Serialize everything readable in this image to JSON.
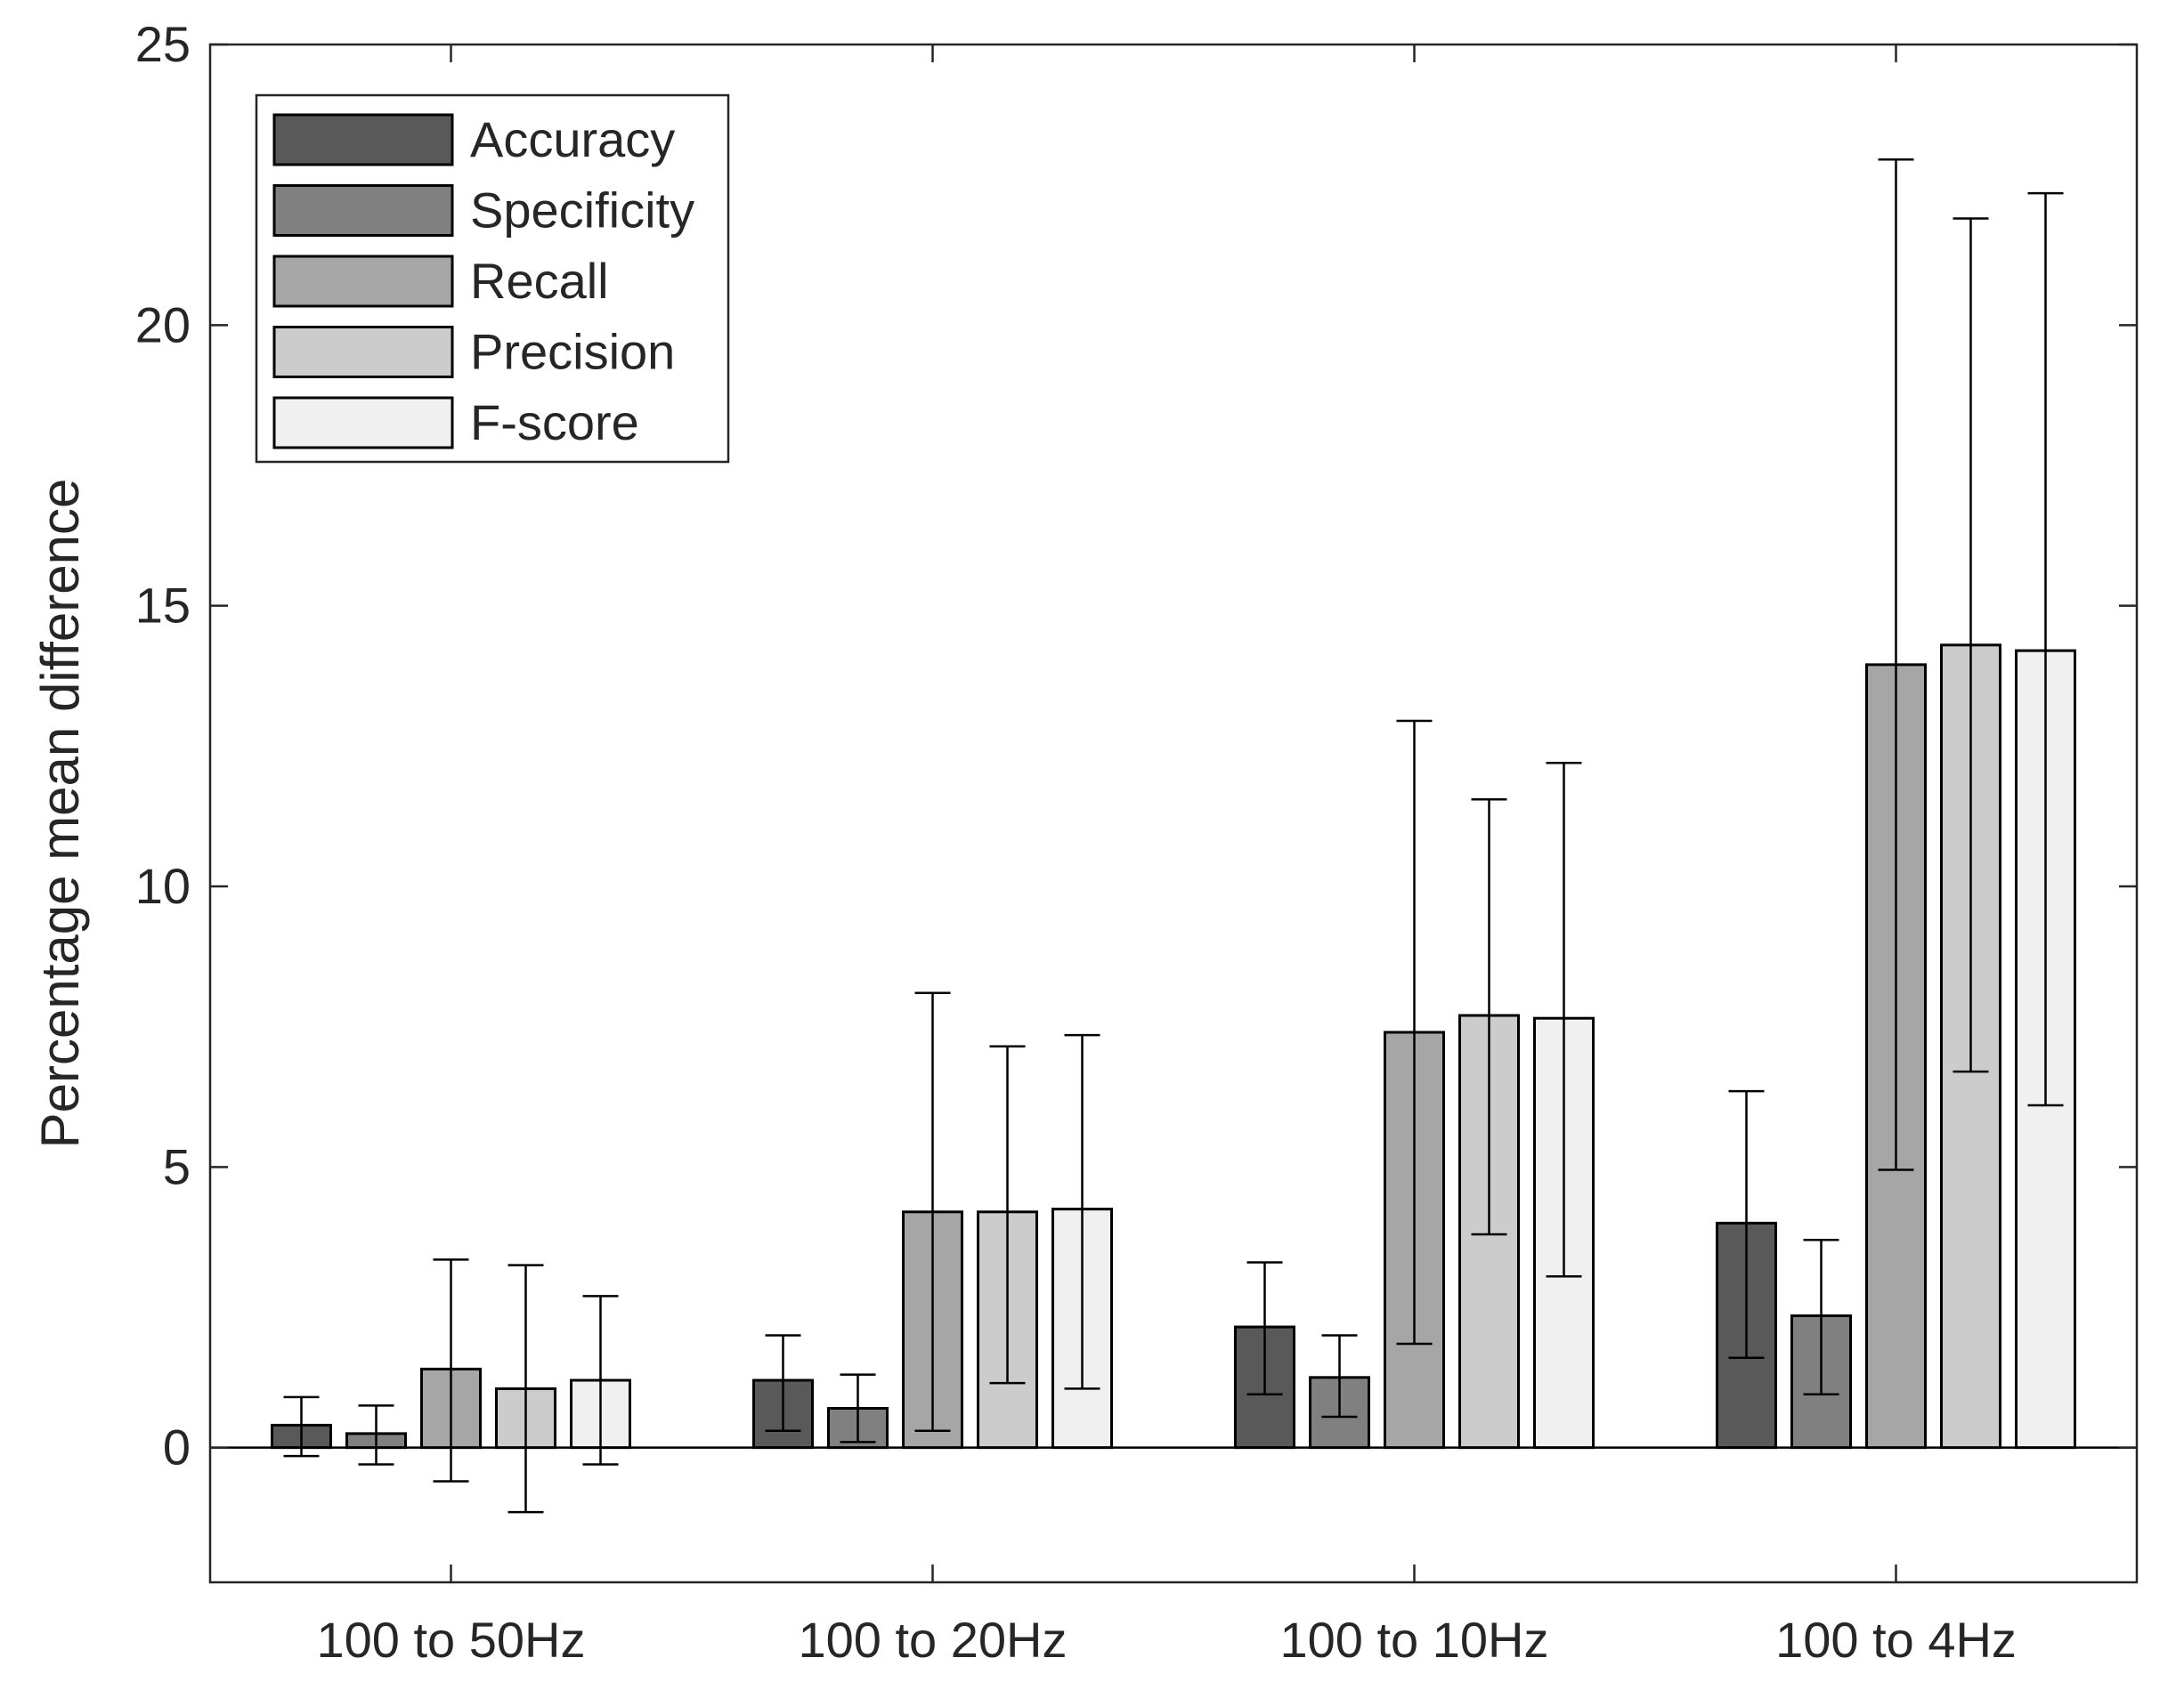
{
  "chart_data": {
    "type": "bar",
    "title": "",
    "xlabel": "",
    "ylabel": "Percentage mean difference",
    "ylim": [
      -2.4,
      25
    ],
    "yticks": [
      0,
      5,
      10,
      15,
      20,
      25
    ],
    "grid": false,
    "legend_position": "top-left",
    "categories": [
      "100 to 50Hz",
      "100 to 20Hz",
      "100 to 10Hz",
      "100 to 4Hz"
    ],
    "series": [
      {
        "name": "Accuracy",
        "color": "#595959",
        "values": [
          0.4,
          1.2,
          2.15,
          4.0
        ],
        "error_low": [
          -0.15,
          0.3,
          0.95,
          1.6
        ],
        "error_high": [
          0.9,
          2.0,
          3.3,
          6.35
        ]
      },
      {
        "name": "Specificity",
        "color": "#808080",
        "values": [
          0.25,
          0.7,
          1.25,
          2.35
        ],
        "error_low": [
          -0.3,
          0.1,
          0.55,
          0.95
        ],
        "error_high": [
          0.75,
          1.3,
          2.0,
          3.7
        ]
      },
      {
        "name": "Recall",
        "color": "#a6a6a6",
        "values": [
          1.4,
          4.2,
          7.4,
          13.95
        ],
        "error_low": [
          -0.6,
          0.3,
          1.85,
          4.95
        ],
        "error_high": [
          3.35,
          8.1,
          12.95,
          22.95
        ]
      },
      {
        "name": "Precision",
        "color": "#cccccc",
        "values": [
          1.05,
          4.2,
          7.7,
          14.3
        ],
        "error_low": [
          -1.15,
          1.15,
          3.8,
          6.7
        ],
        "error_high": [
          3.25,
          7.15,
          11.55,
          21.9
        ]
      },
      {
        "name": "F-score",
        "color": "#f0f0f0",
        "values": [
          1.2,
          4.25,
          7.65,
          14.2
        ],
        "error_low": [
          -0.3,
          1.05,
          3.05,
          6.1
        ],
        "error_high": [
          2.7,
          7.35,
          12.2,
          22.35
        ]
      }
    ]
  }
}
